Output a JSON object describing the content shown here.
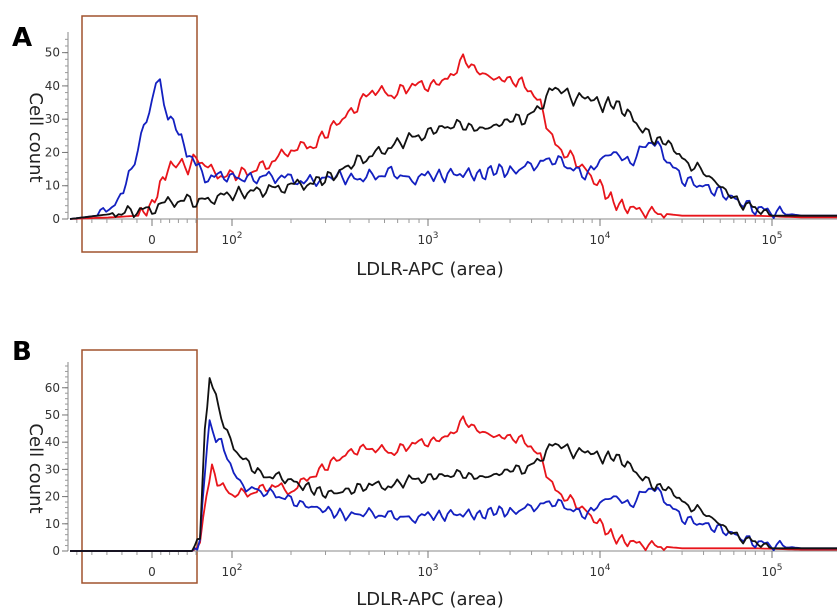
{
  "chart_data": [
    {
      "type": "line",
      "panel": "A",
      "xlabel": "LDLR-APC (area)",
      "ylabel": "Cell count",
      "x_tick_labels": [
        "0",
        "10",
        "10",
        "10",
        "10"
      ],
      "x_tick_exponents": [
        "",
        "2",
        "3",
        "4",
        "5"
      ],
      "x_tick_values": [
        0,
        100,
        1000,
        10000,
        100000
      ],
      "yticks": [
        0,
        10,
        20,
        30,
        40,
        50
      ],
      "ylim": [
        0,
        55
      ],
      "xscale": "logicle",
      "grid": false,
      "gate": {
        "x_from": -60,
        "x_to": 55,
        "color": "#a0522d"
      },
      "colors": {
        "red": "#e8151b",
        "blue": "#1320c0",
        "black": "#111111"
      },
      "series": [
        {
          "color": "red",
          "x": [
            -60,
            -30,
            -10,
            0,
            10,
            20,
            30,
            45,
            55,
            70,
            90,
            120,
            160,
            200,
            260,
            330,
            420,
            520,
            650,
            800,
            1000,
            1300,
            1600,
            2000,
            2500,
            3000,
            3800,
            4500,
            5500,
            7000,
            8500,
            10000,
            12000,
            15000,
            20000,
            30000,
            50000,
            80000,
            120000,
            150000
          ],
          "y": [
            0,
            0.5,
            1,
            4,
            10,
            15,
            17,
            15,
            19,
            15,
            13,
            14,
            17,
            21,
            22,
            28,
            33,
            39,
            37,
            40,
            40,
            42,
            48,
            44,
            42,
            42,
            40,
            34,
            22,
            18,
            14,
            10,
            5,
            3,
            2,
            1,
            1,
            1,
            0.5,
            0.5
          ]
        },
        {
          "color": "blue",
          "x": [
            -60,
            -40,
            -25,
            -15,
            -8,
            0,
            5,
            10,
            15,
            20,
            30,
            40,
            50,
            55,
            70,
            90,
            120,
            160,
            200,
            260,
            330,
            420,
            520,
            650,
            800,
            1000,
            1300,
            1600,
            2000,
            2500,
            3000,
            3800,
            4500,
            5500,
            7000,
            8500,
            10000,
            12000,
            15000,
            20000,
            30000,
            50000,
            80000,
            120000,
            150000
          ],
          "y": [
            0,
            1,
            5,
            15,
            25,
            35,
            42,
            42,
            36,
            31,
            28,
            22,
            17,
            16,
            12,
            13,
            12,
            13,
            12,
            11,
            13,
            12,
            13,
            14,
            12,
            13,
            13,
            14,
            13,
            15,
            14,
            16,
            17,
            18,
            15,
            13,
            18,
            20,
            17,
            24,
            12,
            8,
            3,
            1,
            1
          ]
        },
        {
          "color": "black",
          "x": [
            -60,
            -20,
            0,
            20,
            40,
            55,
            70,
            90,
            120,
            160,
            200,
            260,
            330,
            420,
            520,
            650,
            800,
            1000,
            1300,
            1600,
            2000,
            2500,
            3000,
            3800,
            4500,
            5500,
            7000,
            8500,
            10000,
            12000,
            15000,
            20000,
            25000,
            30000,
            40000,
            50000,
            60000,
            80000,
            100000,
            150000
          ],
          "y": [
            0,
            2,
            3,
            5,
            6,
            5,
            6,
            7,
            8,
            9,
            10,
            11,
            13,
            17,
            19,
            22,
            24,
            26,
            28,
            28,
            27,
            28,
            30,
            30,
            34,
            40,
            36,
            37,
            34,
            35,
            31,
            24,
            23,
            18,
            14,
            10,
            6,
            3,
            1,
            1
          ]
        }
      ]
    },
    {
      "type": "line",
      "panel": "B",
      "xlabel": "LDLR-APC (area)",
      "ylabel": "Cell count",
      "x_tick_labels": [
        "0",
        "10",
        "10",
        "10",
        "10"
      ],
      "x_tick_exponents": [
        "",
        "2",
        "3",
        "4",
        "5"
      ],
      "x_tick_values": [
        0,
        100,
        1000,
        10000,
        100000
      ],
      "yticks": [
        0,
        10,
        20,
        30,
        40,
        50,
        60
      ],
      "ylim": [
        0,
        68
      ],
      "xscale": "logicle",
      "grid": false,
      "gate": {
        "x_from": -60,
        "x_to": 55,
        "color": "#a0522d"
      },
      "colors": {
        "red": "#e8151b",
        "blue": "#1320c0",
        "black": "#111111"
      },
      "series": [
        {
          "color": "red",
          "x": [
            -60,
            0,
            50,
            60,
            68,
            75,
            85,
            100,
            120,
            160,
            200,
            260,
            330,
            420,
            520,
            650,
            800,
            1000,
            1300,
            1600,
            2000,
            2500,
            3000,
            3800,
            4500,
            5500,
            7000,
            8500,
            10000,
            12000,
            15000,
            20000,
            30000,
            50000,
            80000,
            120000,
            150000
          ],
          "y": [
            0,
            0,
            0,
            2,
            22,
            30,
            24,
            21,
            21,
            24,
            22,
            28,
            33,
            37,
            38,
            36,
            39,
            40,
            42,
            48,
            44,
            42,
            42,
            40,
            34,
            22,
            18,
            14,
            10,
            5,
            3,
            2,
            1,
            1,
            1,
            0.5,
            0.5
          ]
        },
        {
          "color": "blue",
          "x": [
            -60,
            0,
            50,
            60,
            66,
            72,
            80,
            90,
            110,
            140,
            180,
            230,
            300,
            380,
            500,
            650,
            800,
            1000,
            1300,
            1600,
            2000,
            2500,
            3000,
            3800,
            4500,
            5500,
            7000,
            8500,
            10000,
            12000,
            15000,
            20000,
            30000,
            50000,
            80000,
            120000,
            150000
          ],
          "y": [
            0,
            0,
            0,
            3,
            30,
            47,
            42,
            38,
            24,
            22,
            20,
            17,
            15,
            13,
            14,
            13,
            12,
            13,
            13,
            14,
            13,
            15,
            14,
            16,
            17,
            18,
            15,
            13,
            18,
            20,
            17,
            24,
            12,
            8,
            3,
            1,
            1
          ]
        },
        {
          "color": "black",
          "x": [
            -60,
            0,
            50,
            60,
            66,
            72,
            80,
            90,
            110,
            140,
            180,
            230,
            300,
            380,
            500,
            650,
            800,
            1000,
            1300,
            1600,
            2000,
            2500,
            3000,
            3800,
            4500,
            5500,
            7000,
            8500,
            10000,
            12000,
            15000,
            20000,
            25000,
            30000,
            40000,
            50000,
            60000,
            80000,
            100000,
            150000
          ],
          "y": [
            0,
            0,
            0,
            5,
            45,
            62,
            57,
            45,
            35,
            28,
            27,
            24,
            21,
            22,
            24,
            24,
            26,
            27,
            28,
            28,
            27,
            28,
            30,
            30,
            34,
            40,
            36,
            37,
            34,
            35,
            31,
            24,
            23,
            18,
            14,
            10,
            6,
            3,
            1,
            1
          ]
        }
      ]
    }
  ]
}
